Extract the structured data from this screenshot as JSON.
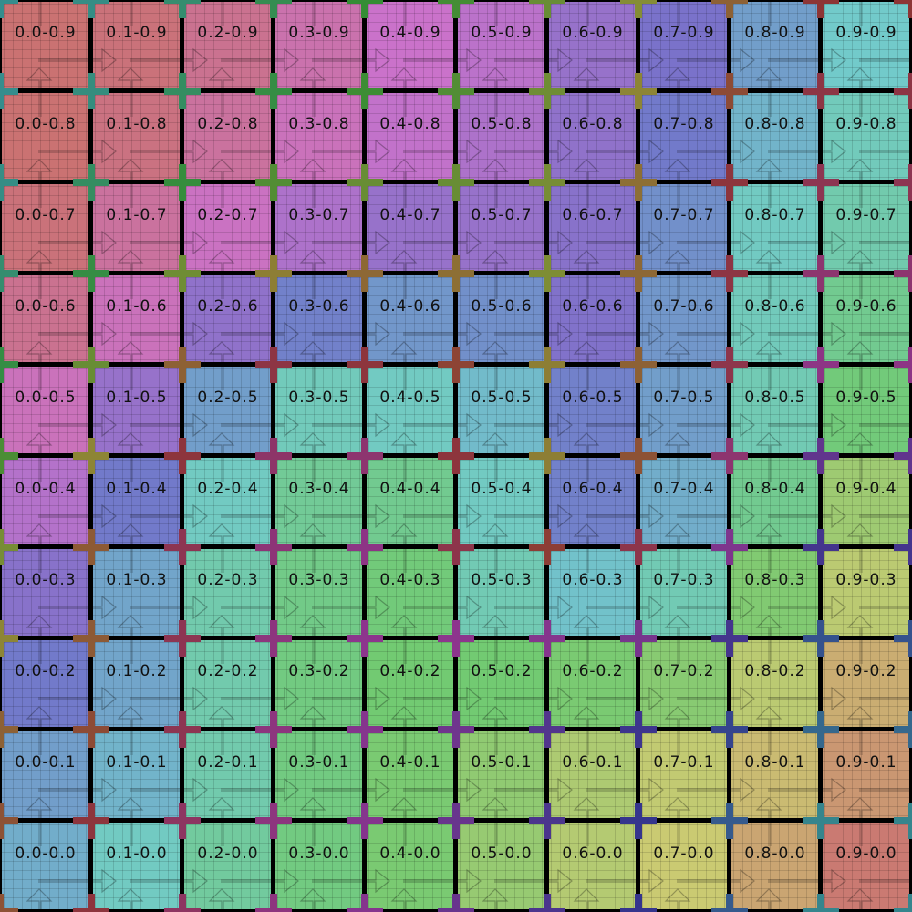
{
  "grid": {
    "columns": [
      "0.0",
      "0.1",
      "0.2",
      "0.3",
      "0.4",
      "0.5",
      "0.6",
      "0.7",
      "0.8",
      "0.9"
    ],
    "rows_top_to_bottom": [
      "0.9",
      "0.8",
      "0.7",
      "0.6",
      "0.5",
      "0.4",
      "0.3",
      "0.2",
      "0.1",
      "0.0"
    ],
    "label_separator": "-",
    "cell_hues_top_to_bottom": [
      [
        0,
        355,
        340,
        320,
        300,
        290,
        265,
        245,
        210,
        180
      ],
      [
        0,
        350,
        330,
        310,
        295,
        280,
        260,
        235,
        195,
        170
      ],
      [
        355,
        330,
        305,
        280,
        265,
        265,
        255,
        220,
        175,
        160
      ],
      [
        340,
        310,
        260,
        230,
        215,
        220,
        250,
        215,
        170,
        140
      ],
      [
        310,
        265,
        210,
        170,
        175,
        190,
        230,
        210,
        165,
        125
      ],
      [
        285,
        235,
        175,
        145,
        140,
        175,
        230,
        200,
        140,
        90
      ],
      [
        255,
        205,
        160,
        135,
        125,
        165,
        185,
        165,
        110,
        70
      ],
      [
        235,
        205,
        160,
        130,
        120,
        120,
        115,
        105,
        70,
        40
      ],
      [
        210,
        195,
        160,
        130,
        115,
        100,
        80,
        65,
        50,
        25
      ],
      [
        200,
        175,
        150,
        130,
        115,
        95,
        75,
        60,
        35,
        5
      ]
    ]
  }
}
